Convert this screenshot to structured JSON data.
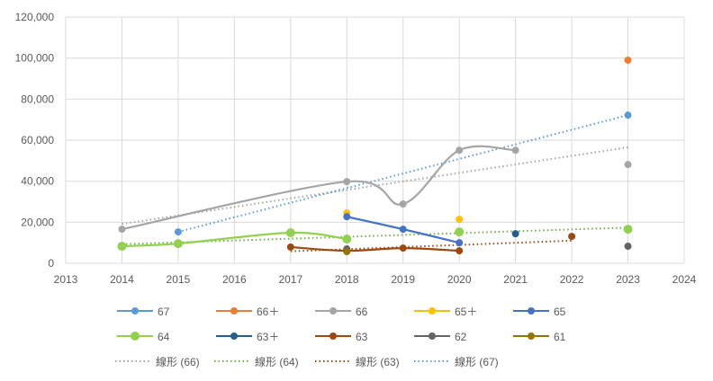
{
  "chart_data": {
    "type": "line",
    "title": "",
    "xlabel": "",
    "ylabel": "",
    "xlim": [
      2013,
      2024
    ],
    "ylim": [
      0,
      120000
    ],
    "x_ticks": [
      "2013",
      "2014",
      "2015",
      "2016",
      "2017",
      "2018",
      "2019",
      "2020",
      "2021",
      "2022",
      "2023",
      "2024"
    ],
    "y_ticks": [
      "0",
      "20,000",
      "40,000",
      "60,000",
      "80,000",
      "100,000",
      "120,000"
    ],
    "grid": true,
    "legend_position": "bottom",
    "series": [
      {
        "name": "67",
        "color": "#5B9BD5",
        "line": false,
        "x": [
          2015,
          2023
        ],
        "y": [
          15300,
          72200
        ]
      },
      {
        "name": "66＋",
        "color": "#ED7D31",
        "line": false,
        "x": [
          2023
        ],
        "y": [
          99000
        ]
      },
      {
        "name": "66",
        "color": "#A5A5A5",
        "line": true,
        "x": [
          2014,
          2018,
          2019,
          2020,
          2021,
          2023
        ],
        "y": [
          16600,
          39800,
          28900,
          55100,
          55100,
          48100
        ],
        "line_until": 2021
      },
      {
        "name": "65＋",
        "color": "#FFC000",
        "line": false,
        "x": [
          2018,
          2020
        ],
        "y": [
          24500,
          21400
        ]
      },
      {
        "name": "65",
        "color": "#4472C4",
        "line": true,
        "x": [
          2018,
          2019,
          2020
        ],
        "y": [
          22700,
          16600,
          10000
        ]
      },
      {
        "name": "64",
        "color": "#92D050",
        "line": true,
        "x": [
          2014,
          2015,
          2017,
          2018,
          2020,
          2023
        ],
        "y": [
          8300,
          9600,
          14900,
          11800,
          15300,
          16600
        ],
        "line_until": 2018
      },
      {
        "name": "63＋",
        "color": "#255E91",
        "line": false,
        "x": [
          2021
        ],
        "y": [
          14400
        ]
      },
      {
        "name": "63",
        "color": "#9E480E",
        "line": true,
        "x": [
          2017,
          2018,
          2019,
          2020,
          2022
        ],
        "y": [
          7900,
          6100,
          7400,
          6100,
          13100
        ],
        "line_until": 2020
      },
      {
        "name": "62",
        "color": "#636363",
        "line": false,
        "x": [
          2018,
          2023
        ],
        "y": [
          7000,
          8300
        ]
      },
      {
        "name": "61",
        "color": "#997300",
        "line": false,
        "x": [
          2018
        ],
        "y": [
          5700
        ]
      }
    ],
    "trendlines": [
      {
        "name": "線形 (66)",
        "series": "66",
        "color": "#A5A5A5"
      },
      {
        "name": "線形 (64)",
        "series": "64",
        "color": "#70AD47"
      },
      {
        "name": "線形 (63)",
        "series": "63",
        "color": "#9E480E"
      },
      {
        "name": "線形 (67)",
        "series": "67",
        "color": "#5B9BD5"
      }
    ]
  }
}
